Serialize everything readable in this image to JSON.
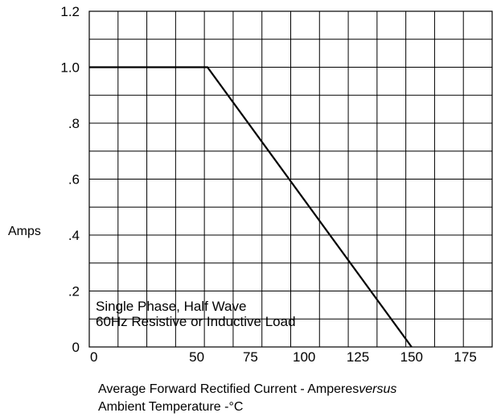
{
  "chart_data": {
    "type": "line",
    "ylabel": "Amps",
    "xlim": [
      0,
      187.5
    ],
    "ylim": [
      0,
      1.2
    ],
    "grid": true,
    "x_ticks": [
      0,
      50,
      75,
      100,
      125,
      150,
      175
    ],
    "x_tick_labels": [
      "0",
      "50",
      "75",
      "100",
      "125",
      "150",
      "175"
    ],
    "y_ticks": [
      0,
      0.2,
      0.4,
      0.6,
      0.8,
      1.0,
      1.2
    ],
    "y_tick_labels": [
      "0",
      ".2",
      ".4",
      ".6",
      ".8",
      "1.0",
      "1.2"
    ],
    "series": [
      {
        "x": [
          0,
          55,
          150
        ],
        "y": [
          1.0,
          1.0,
          0
        ]
      }
    ],
    "annotation": {
      "line1": "Single Phase, Half Wave",
      "line2": "60Hz Resistive or Inductive Load"
    },
    "caption": {
      "line1_main": "Average Forward Rectified Current  -  Amperes",
      "line1_italic": "versus",
      "line2": "Ambient Temperature  -°C"
    }
  }
}
